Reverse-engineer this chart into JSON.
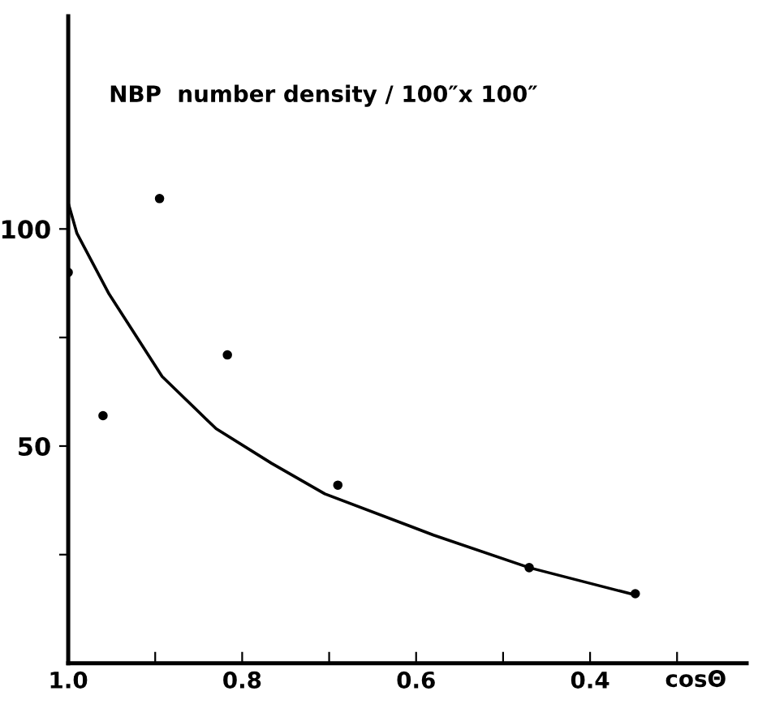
{
  "chart_data": {
    "type": "scatter",
    "ylabel": "NBP  number density / 100″x 100″",
    "xlabel": "cosΘ",
    "xlim": [
      1.0,
      0.22
    ],
    "ylim": [
      0,
      149
    ],
    "xticks": [
      {
        "value": 1.0,
        "label": "1.0"
      },
      {
        "value": 0.9,
        "label": null
      },
      {
        "value": 0.8,
        "label": "0.8"
      },
      {
        "value": 0.7,
        "label": null
      },
      {
        "value": 0.6,
        "label": "0.6"
      },
      {
        "value": 0.5,
        "label": null
      },
      {
        "value": 0.4,
        "label": "0.4"
      },
      {
        "value": 0.3,
        "label": null
      }
    ],
    "yticks": [
      {
        "value": 25,
        "label": null
      },
      50,
      {
        "value": 75,
        "label": null
      },
      100
    ],
    "grid": false,
    "legend": false,
    "series": [
      {
        "color": "#000000",
        "marker": "circle",
        "x": [
          1.0,
          0.96,
          0.895,
          0.817,
          0.69,
          0.47,
          0.348
        ],
        "values": [
          90,
          57,
          107,
          71,
          41,
          22,
          16
        ]
      },
      {
        "type": "line",
        "color": "#000000",
        "marker": "none",
        "line_style": "solid",
        "x": [
          1.0,
          0.99,
          0.953,
          0.892,
          0.83,
          0.766,
          0.705,
          0.58,
          0.47,
          0.348
        ],
        "values": [
          106,
          99,
          85,
          66,
          54,
          46,
          39,
          29.5,
          22,
          15.7
        ]
      }
    ]
  }
}
